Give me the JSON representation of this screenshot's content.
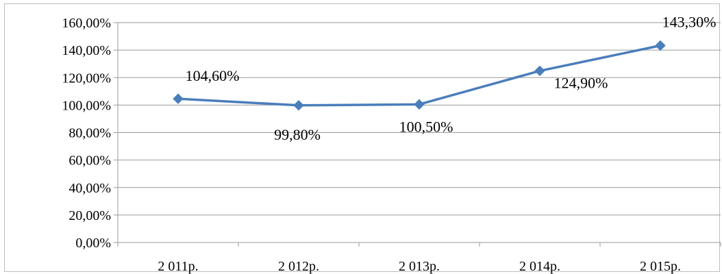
{
  "chart_data": {
    "type": "line",
    "title": "",
    "xlabel": "",
    "ylabel": "",
    "categories": [
      "2 011р.",
      "2 012р.",
      "2 013р.",
      "2 014р.",
      "2 015р."
    ],
    "series": [
      {
        "values": [
          104.6,
          99.8,
          100.5,
          124.9,
          143.3
        ],
        "labels": [
          "104,60%",
          "99,80%",
          "100,50%",
          "124,90%",
          "143,30%"
        ],
        "color": "#4a7ebb",
        "marker": "diamond"
      }
    ],
    "ylim": [
      0,
      160
    ],
    "y_ticks": [
      "0,00%",
      "20,00%",
      "40,00%",
      "60,00%",
      "80,00%",
      "100,00%",
      "120,00%",
      "140,00%",
      "160,00%"
    ],
    "grid": true,
    "gridline_color": "#9a9a9a",
    "legend": "none"
  }
}
